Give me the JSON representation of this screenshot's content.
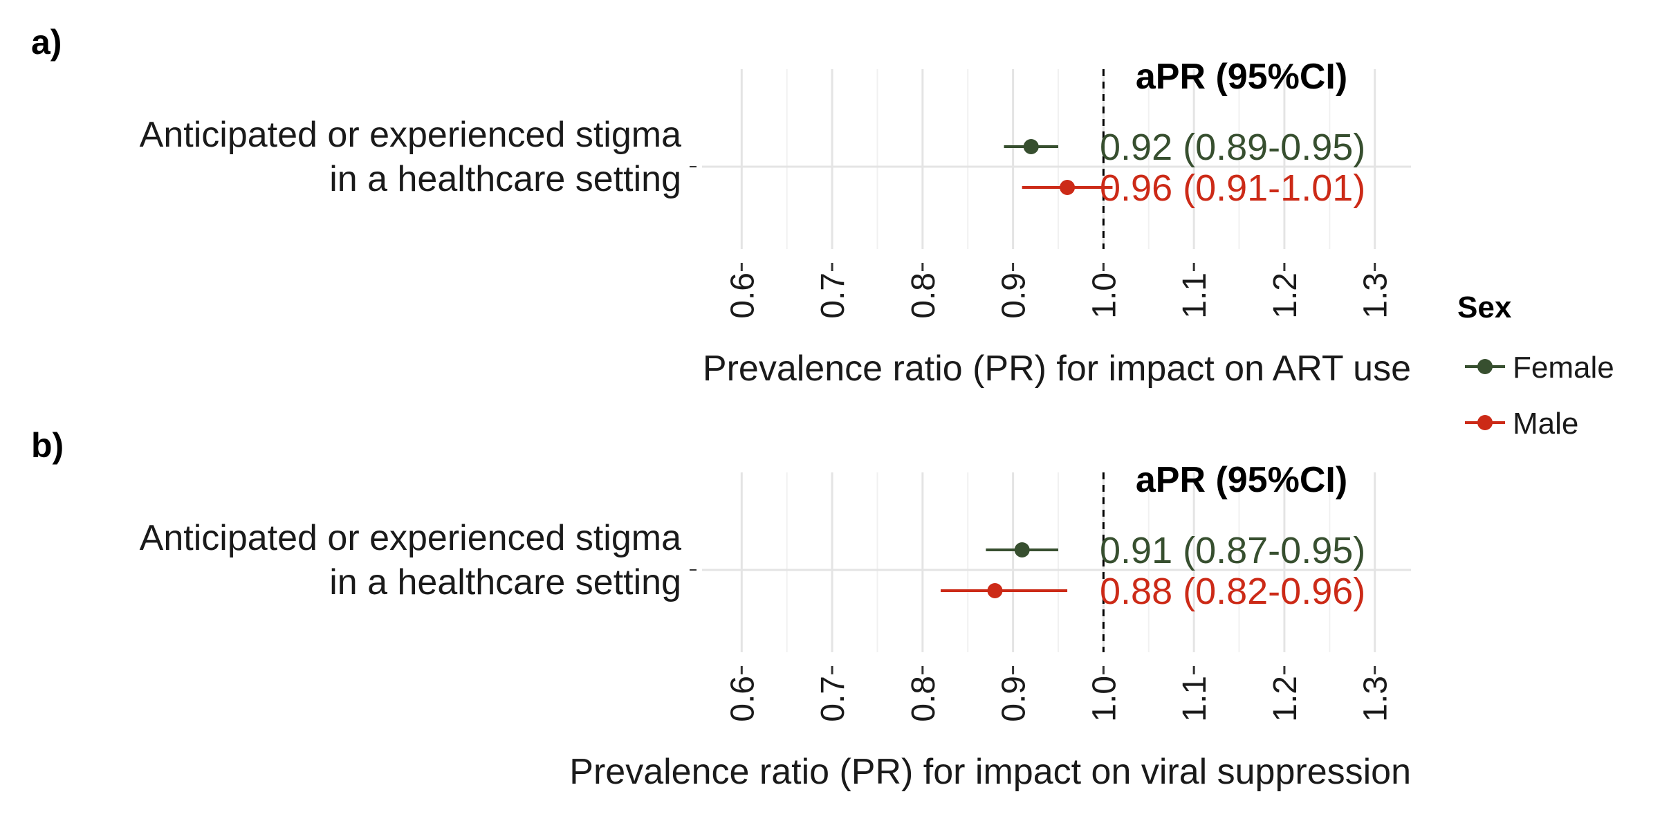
{
  "colors": {
    "Female": "#374f2f",
    "Male": "#cc2a17",
    "grid_major": "#e4e4e4",
    "grid_minor": "#f1f1f1",
    "reference_line": "#000000"
  },
  "legend": {
    "title": "Sex",
    "items": [
      "Female",
      "Male"
    ]
  },
  "chart_data": [
    {
      "type": "forest",
      "panel_label": "a)",
      "xlabel": "Prevalence ratio (PR) for impact on ART use",
      "header": "aPR (95%CI)",
      "category_label": [
        "Anticipated or experienced stigma",
        "in a healthcare setting"
      ],
      "xlim": [
        0.56,
        1.34
      ],
      "xticks": [
        "0.6",
        "0.7",
        "0.8",
        "0.9",
        "1.0",
        "1.1",
        "1.2",
        "1.3"
      ],
      "reference_line": 1.0,
      "grid": true,
      "series": [
        {
          "name": "Female",
          "estimate": 0.92,
          "lower": 0.89,
          "upper": 0.95,
          "label": "0.92 (0.89-0.95)"
        },
        {
          "name": "Male",
          "estimate": 0.96,
          "lower": 0.91,
          "upper": 1.01,
          "label": "0.96 (0.91-1.01)"
        }
      ]
    },
    {
      "type": "forest",
      "panel_label": "b)",
      "xlabel": "Prevalence ratio (PR) for impact on viral suppression",
      "header": "aPR (95%CI)",
      "category_label": [
        "Anticipated or experienced stigma",
        "in a healthcare setting"
      ],
      "xlim": [
        0.56,
        1.34
      ],
      "xticks": [
        "0.6",
        "0.7",
        "0.8",
        "0.9",
        "1.0",
        "1.1",
        "1.2",
        "1.3"
      ],
      "reference_line": 1.0,
      "grid": true,
      "series": [
        {
          "name": "Female",
          "estimate": 0.91,
          "lower": 0.87,
          "upper": 0.95,
          "label": "0.91 (0.87-0.95)"
        },
        {
          "name": "Male",
          "estimate": 0.88,
          "lower": 0.82,
          "upper": 0.96,
          "label": "0.88 (0.82-0.96)"
        }
      ]
    }
  ]
}
